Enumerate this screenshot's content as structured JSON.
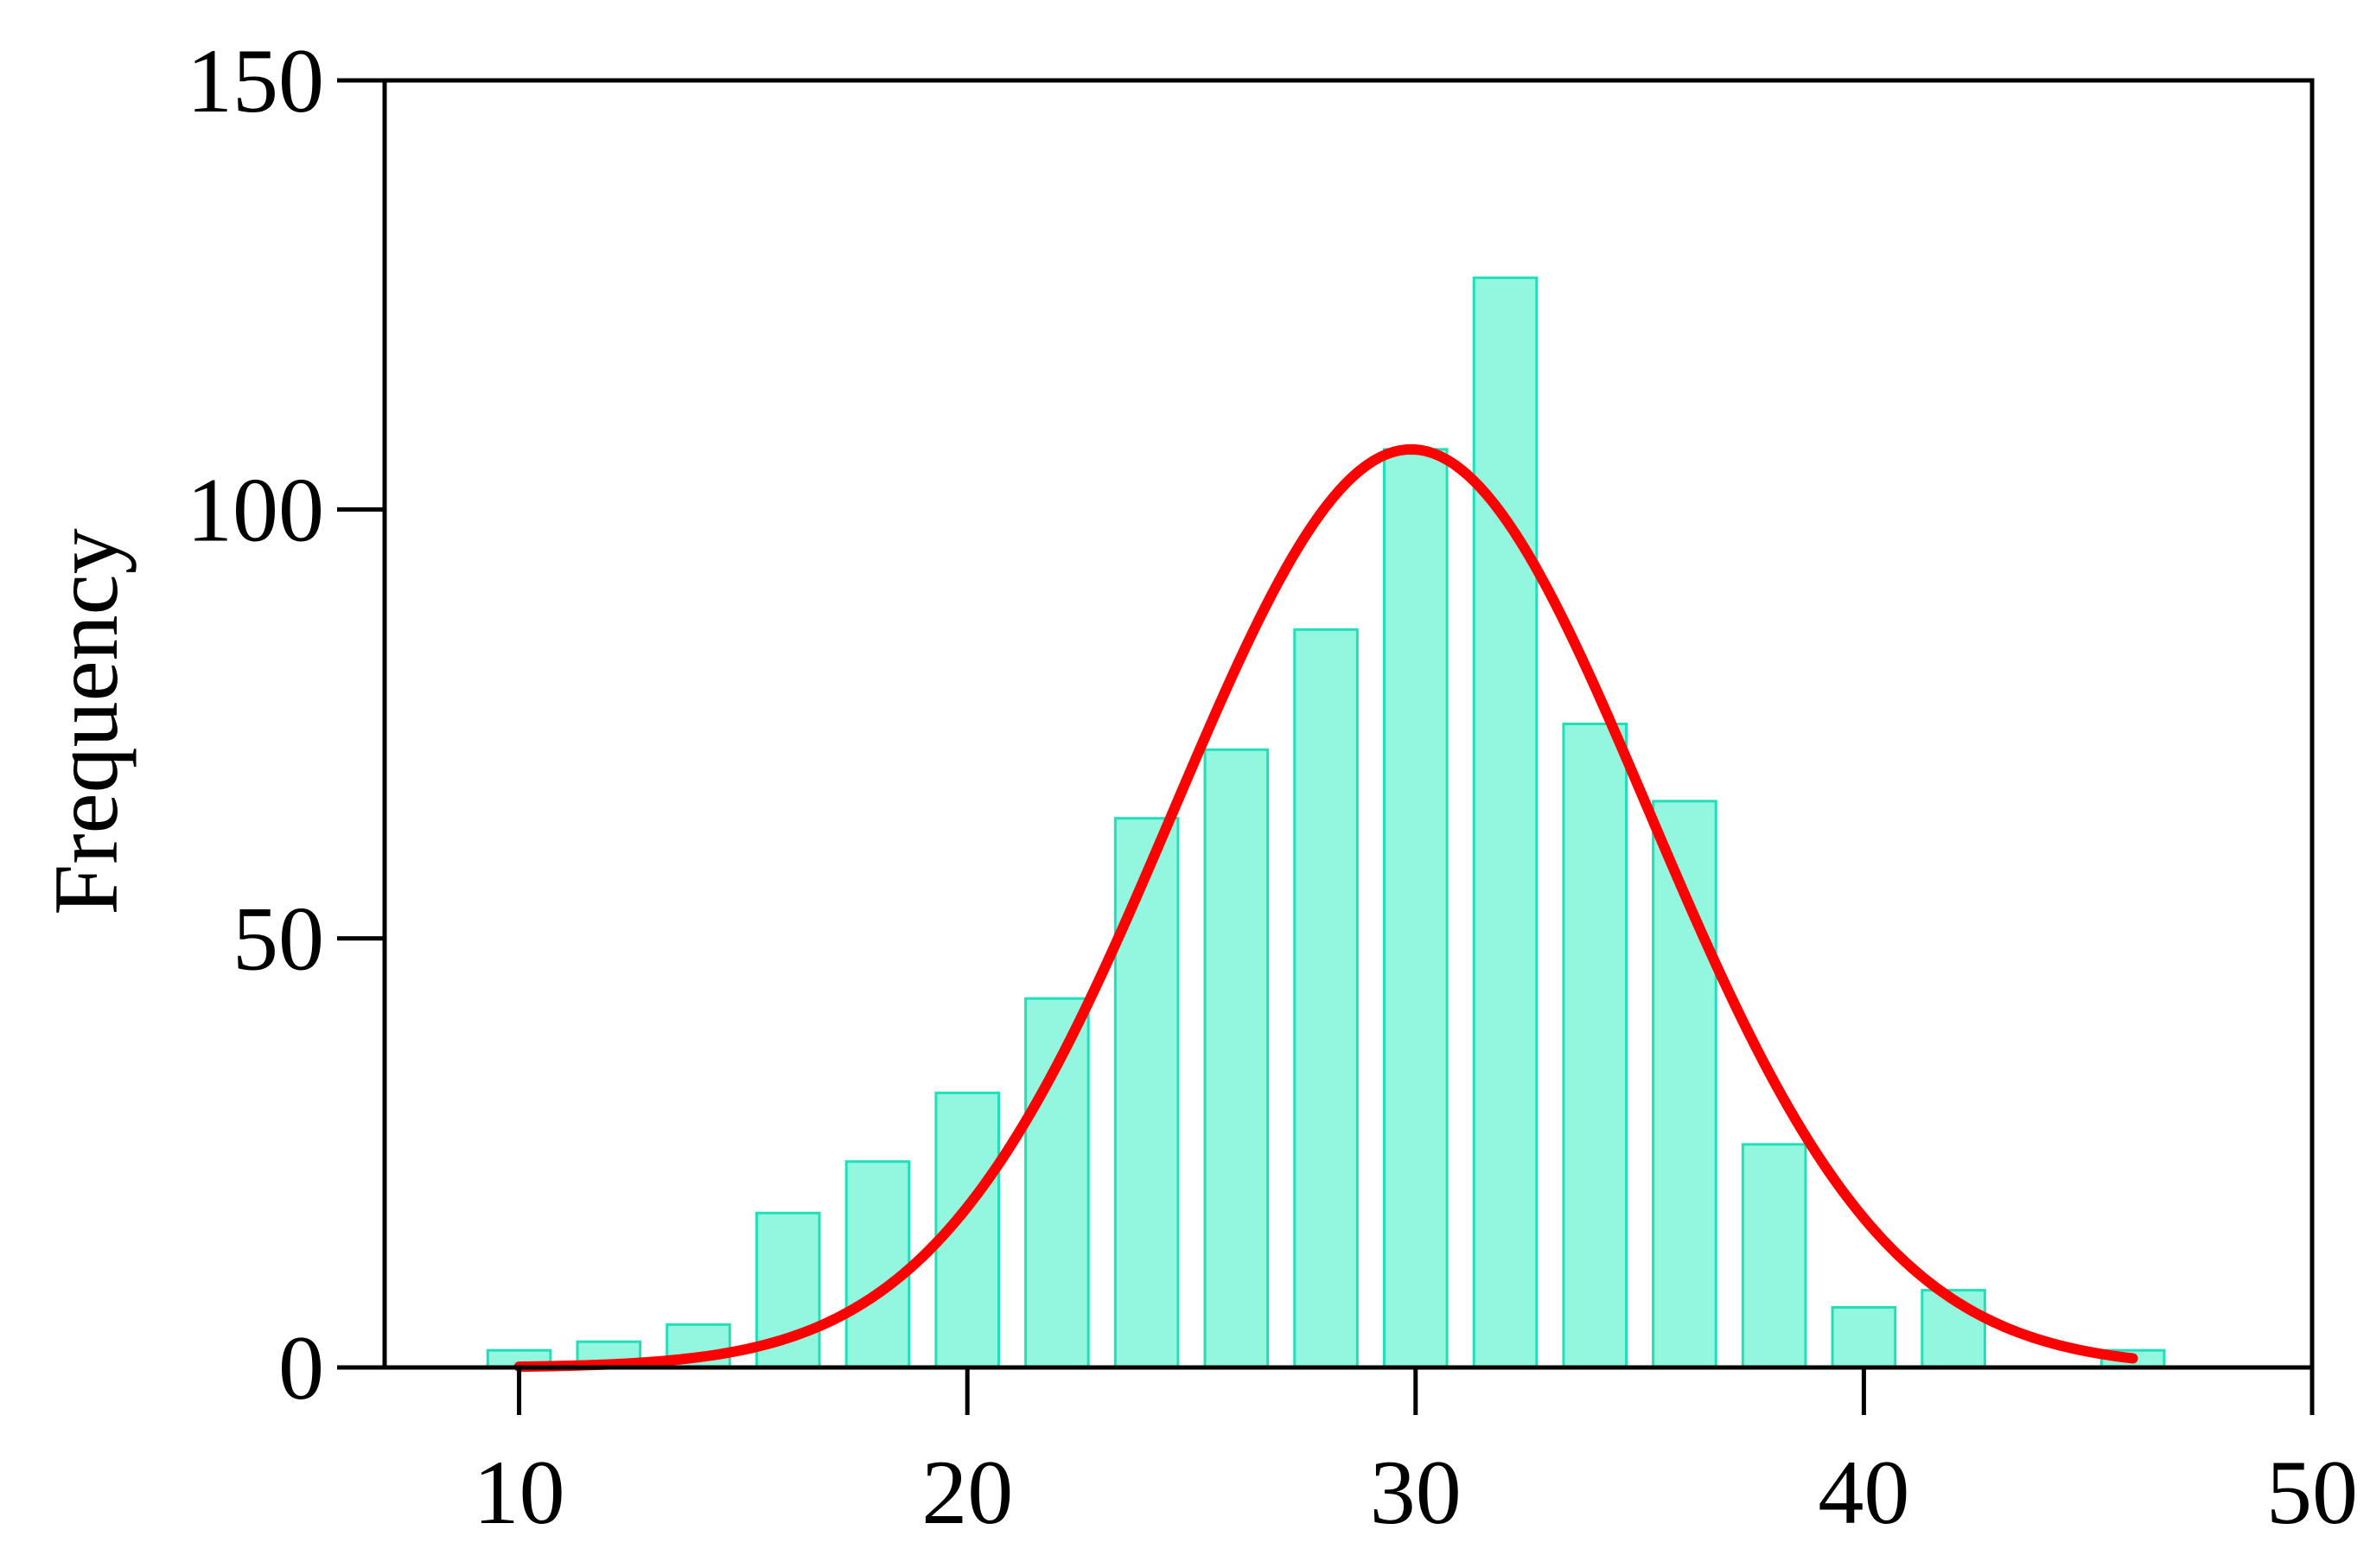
{
  "chart_data": {
    "type": "bar",
    "title": "",
    "xlabel": "",
    "ylabel": "Frequency",
    "xlim": [
      7,
      50
    ],
    "ylim": [
      0,
      150
    ],
    "x_ticks": [
      "10",
      "20",
      "30",
      "40",
      "50"
    ],
    "y_ticks": [
      "0",
      "50",
      "100",
      "150"
    ],
    "grid": false,
    "bin_width": 2,
    "bins": [
      {
        "x": 10,
        "value": 2
      },
      {
        "x": 12,
        "value": 3
      },
      {
        "x": 14,
        "value": 5
      },
      {
        "x": 16,
        "value": 18
      },
      {
        "x": 18,
        "value": 24
      },
      {
        "x": 20,
        "value": 32
      },
      {
        "x": 22,
        "value": 43
      },
      {
        "x": 24,
        "value": 64
      },
      {
        "x": 26,
        "value": 72
      },
      {
        "x": 28,
        "value": 86
      },
      {
        "x": 30,
        "value": 107
      },
      {
        "x": 32,
        "value": 127
      },
      {
        "x": 34,
        "value": 75
      },
      {
        "x": 36,
        "value": 66
      },
      {
        "x": 38,
        "value": 26
      },
      {
        "x": 40,
        "value": 7
      },
      {
        "x": 42,
        "value": 9
      },
      {
        "x": 44,
        "value": 0
      },
      {
        "x": 46,
        "value": 2
      }
    ],
    "curve": {
      "type": "normal-fit",
      "mean": 29.9,
      "sd": 5.3,
      "peak": 107,
      "x_range": [
        10,
        46
      ]
    },
    "colors": {
      "bar_fill": "#93f7df",
      "bar_stroke": "#1fe0b8",
      "curve": "#ff0000",
      "axis": "#000000"
    }
  }
}
